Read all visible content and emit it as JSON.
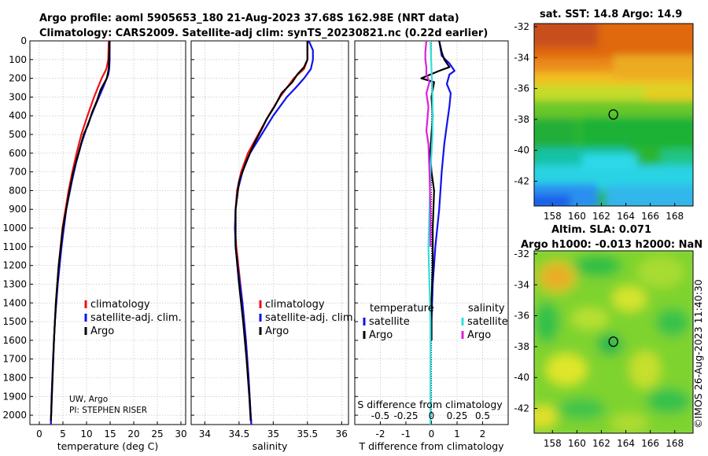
{
  "title": {
    "line1": "Argo profile: aoml 5905653_180 21-Aug-2023 37.68S 162.98E (NRT data)",
    "line2": "Climatology: CARS2009. Satellite-adj clim: synTS_20230821.nc (0.22d earlier)"
  },
  "credit": "©IMOS 26-Aug-2023 11:40:30",
  "float_info": {
    "line1": "UW, Argo",
    "line2": "PI: STEPHEN RISER"
  },
  "colors": {
    "climatology": "#ee1111",
    "satellite": "#1111ee",
    "argo": "#000000",
    "sal_satellite": "#33dddd",
    "sal_argo": "#dd22dd"
  },
  "chart_data": [
    {
      "type": "line",
      "name": "temperature-profile",
      "xlabel": "temperature (deg C)",
      "ylabel": "",
      "xlim": [
        -2,
        31
      ],
      "ylim": [
        2050,
        0
      ],
      "xticks": [
        0,
        5,
        10,
        15,
        20,
        25,
        30
      ],
      "yticks": [
        0,
        100,
        200,
        300,
        400,
        500,
        600,
        700,
        800,
        900,
        1000,
        1100,
        1200,
        1300,
        1400,
        1500,
        1600,
        1700,
        1800,
        1900,
        2000
      ],
      "legend": [
        "climatology",
        "satellite-adj. clim.",
        "Argo"
      ],
      "series": [
        {
          "name": "climatology",
          "color": "#ee1111",
          "depth": [
            0,
            100,
            150,
            200,
            300,
            400,
            500,
            600,
            700,
            800,
            1000,
            1200,
            1400,
            1600,
            1800,
            2000,
            2050
          ],
          "values": [
            14.7,
            14.6,
            14.2,
            13.2,
            11.6,
            10.2,
            8.9,
            7.9,
            7.0,
            6.2,
            4.9,
            4.1,
            3.5,
            3.1,
            2.8,
            2.5,
            2.45
          ]
        },
        {
          "name": "satellite-adj. clim.",
          "color": "#1111ee",
          "depth": [
            0,
            100,
            150,
            180,
            250,
            350,
            450,
            550,
            650,
            750,
            900,
            1100,
            1300,
            1500,
            1700,
            1900,
            2050
          ],
          "values": [
            14.9,
            14.9,
            14.8,
            14.6,
            13.5,
            11.8,
            10.2,
            8.9,
            7.8,
            6.9,
            5.7,
            4.7,
            3.9,
            3.3,
            2.9,
            2.6,
            2.45
          ]
        },
        {
          "name": "Argo",
          "color": "#000000",
          "depth": [
            0,
            80,
            150,
            200,
            260,
            320,
            380,
            450,
            500,
            600,
            700,
            800,
            1000,
            1200,
            1400,
            1600,
            1800,
            2000,
            2030
          ],
          "values": [
            14.9,
            14.8,
            14.7,
            14.3,
            13.0,
            12.2,
            11.2,
            10.3,
            9.4,
            8.3,
            7.2,
            6.4,
            5.0,
            4.1,
            3.5,
            3.1,
            2.8,
            2.5,
            2.45
          ]
        }
      ]
    },
    {
      "type": "line",
      "name": "salinity-profile",
      "xlabel": "salinity",
      "ylabel": "",
      "xlim": [
        33.8,
        36.1
      ],
      "ylim": [
        2050,
        0
      ],
      "xticks": [
        34,
        34.5,
        35,
        35.5,
        36
      ],
      "legend": [
        "climatology",
        "satellite-adj. clim.",
        "Argo"
      ],
      "series": [
        {
          "name": "climatology",
          "color": "#ee1111",
          "depth": [
            0,
            100,
            150,
            200,
            300,
            400,
            500,
            600,
            700,
            800,
            900,
            1000,
            1100,
            1200,
            1400,
            1600,
            1800,
            2000,
            2050
          ],
          "values": [
            35.5,
            35.5,
            35.45,
            35.3,
            35.1,
            34.93,
            34.78,
            34.63,
            34.53,
            34.47,
            34.45,
            34.44,
            34.46,
            34.49,
            34.55,
            34.6,
            34.64,
            34.67,
            34.68
          ]
        },
        {
          "name": "satellite-adj. clim.",
          "color": "#1111ee",
          "depth": [
            0,
            50,
            100,
            150,
            200,
            250,
            300,
            400,
            500,
            600,
            700,
            800,
            900,
            1000,
            1100,
            1200,
            1400,
            1600,
            1800,
            2000,
            2050
          ],
          "values": [
            35.52,
            35.58,
            35.58,
            35.55,
            35.45,
            35.33,
            35.2,
            35.0,
            34.83,
            34.66,
            34.55,
            34.48,
            34.45,
            34.44,
            34.45,
            34.48,
            34.55,
            34.6,
            34.64,
            34.67,
            34.68
          ]
        },
        {
          "name": "Argo",
          "color": "#000000",
          "depth": [
            0,
            60,
            100,
            140,
            180,
            220,
            280,
            350,
            420,
            480,
            550,
            650,
            750,
            900,
            1100,
            1300,
            1500,
            1700,
            1900,
            2030
          ],
          "values": [
            35.5,
            35.5,
            35.5,
            35.45,
            35.35,
            35.28,
            35.12,
            35.02,
            34.9,
            34.82,
            34.72,
            34.6,
            34.5,
            34.45,
            34.45,
            34.5,
            34.56,
            34.61,
            34.65,
            34.67
          ]
        }
      ]
    },
    {
      "type": "line",
      "name": "difference-from-climatology",
      "xlabel": "T difference from climatology",
      "xlabel_top": "S difference from climatology",
      "xlim": [
        -3,
        3
      ],
      "ylim": [
        2050,
        0
      ],
      "xticks": [
        -2,
        -1,
        0,
        1,
        2
      ],
      "xticks_salinity": [
        "-0.5",
        "-0.25",
        "0",
        "0.25",
        "0.5"
      ],
      "legend_titles": [
        "temperature",
        "salinity"
      ],
      "legend": [
        "satellite",
        "Argo",
        "satellite",
        "Argo"
      ],
      "series": [
        {
          "name": "T satellite",
          "color": "#1111ee",
          "depth": [
            0,
            80,
            120,
            160,
            180,
            230,
            280,
            350,
            450,
            550,
            700,
            900,
            1100,
            1300,
            1500,
            1600
          ],
          "values": [
            0.3,
            0.4,
            0.7,
            0.9,
            0.7,
            0.6,
            0.75,
            0.7,
            0.6,
            0.5,
            0.4,
            0.3,
            0.15,
            0.05,
            0.0,
            0.0
          ]
        },
        {
          "name": "T Argo",
          "color": "#000000",
          "depth": [
            0,
            60,
            100,
            140,
            160,
            200,
            220,
            300,
            400,
            500,
            600,
            700,
            800,
            1000,
            1200,
            1400,
            1600
          ],
          "values": [
            0.3,
            0.4,
            0.5,
            0.7,
            0.3,
            -0.4,
            0.1,
            0.0,
            0.05,
            0.0,
            -0.05,
            0.0,
            0.1,
            0.05,
            0.05,
            0.0,
            0.0
          ]
        },
        {
          "name": "S satellite",
          "color": "#33dddd",
          "depth": [
            0,
            150,
            300,
            500,
            700,
            900,
            1100,
            1300,
            1500,
            1700,
            1900,
            2050
          ],
          "values": [
            -0.01,
            0.0,
            0.01,
            0.01,
            -0.01,
            -0.02,
            -0.03,
            -0.02,
            -0.01,
            -0.01,
            -0.01,
            -0.01
          ]
        },
        {
          "name": "S Argo",
          "color": "#dd22dd",
          "depth": [
            0,
            60,
            100,
            140,
            180,
            220,
            280,
            350,
            420,
            480,
            550,
            700,
            900,
            1100
          ],
          "values": [
            -0.05,
            -0.06,
            -0.06,
            -0.05,
            -0.05,
            -0.02,
            -0.05,
            -0.03,
            -0.04,
            -0.05,
            -0.03,
            -0.02,
            -0.01,
            -0.01
          ]
        }
      ]
    },
    {
      "type": "heatmap",
      "name": "satellite-sst-map",
      "title": "sat. SST: 14.8 Argo: 14.9",
      "xticks": [
        158,
        160,
        162,
        164,
        166,
        168
      ],
      "yticks": [
        -32,
        -34,
        -36,
        -38,
        -40,
        -42
      ],
      "xlim": [
        156.5,
        169.5
      ],
      "ylim": [
        -43.6,
        -31.8
      ],
      "marker": {
        "lon": 162.98,
        "lat": -37.68
      }
    },
    {
      "type": "heatmap",
      "name": "altimetry-sla-map",
      "title_line1": "Altim. SLA: 0.071",
      "title_line2": "Argo h1000: -0.013 h2000: NaN",
      "xticks": [
        158,
        160,
        162,
        164,
        166,
        168
      ],
      "yticks": [
        -32,
        -34,
        -36,
        -38,
        -40,
        -42
      ],
      "xlim": [
        156.5,
        169.5
      ],
      "ylim": [
        -43.6,
        -31.8
      ],
      "marker": {
        "lon": 162.98,
        "lat": -37.68
      }
    }
  ]
}
